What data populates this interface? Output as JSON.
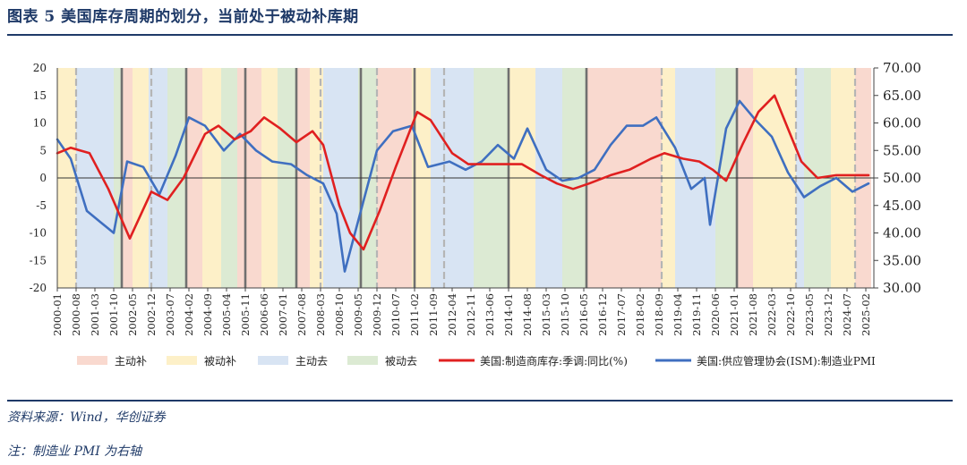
{
  "header": {
    "title": "图表 5   美国库存周期的划分，当前处于被动补库期"
  },
  "footer": {
    "source": "资料来源：Wind，华创证券",
    "note": "注：制造业 PMI 为右轴"
  },
  "chart_data": {
    "type": "line",
    "left_axis": {
      "range": [
        -20,
        20
      ],
      "ticks": [
        "20",
        "15",
        "10",
        "5",
        "0",
        "-5",
        "-10",
        "-15",
        "-20"
      ]
    },
    "right_axis": {
      "range": [
        30,
        70
      ],
      "ticks": [
        "70.00",
        "65.00",
        "60.00",
        "55.00",
        "50.00",
        "45.00",
        "40.00",
        "35.00",
        "30.00"
      ]
    },
    "x_ticks": [
      "2000-01",
      "2000-08",
      "2001-03",
      "2001-10",
      "2002-05",
      "2002-12",
      "2003-07",
      "2004-02",
      "2004-09",
      "2005-04",
      "2005-11",
      "2006-06",
      "2007-01",
      "2007-08",
      "2008-03",
      "2008-10",
      "2009-05",
      "2009-12",
      "2010-07",
      "2011-02",
      "2011-09",
      "2012-04",
      "2012-11",
      "2013-06",
      "2014-01",
      "2014-08",
      "2015-03",
      "2015-10",
      "2016-05",
      "2016-12",
      "2017-07",
      "2018-02",
      "2018-09",
      "2019-04",
      "2019-11",
      "2020-06",
      "2021-01",
      "2021-08",
      "2022-03",
      "2022-10",
      "2023-05",
      "2023-12",
      "2024-07",
      "2025-02"
    ],
    "legend": [
      {
        "label": "主动补",
        "kind": "area",
        "color": "#f9d9cf"
      },
      {
        "label": "被动补",
        "kind": "area",
        "color": "#fdf0c8"
      },
      {
        "label": "主动去",
        "kind": "area",
        "color": "#d8e4f3"
      },
      {
        "label": "被动去",
        "kind": "area",
        "color": "#dcead3"
      },
      {
        "label": "美国:制造商库存:季调:同比(%)",
        "kind": "line",
        "color": "#e02020"
      },
      {
        "label": "美国:供应管理协会(ISM):制造业PMI",
        "kind": "line",
        "color": "#3f6fc0"
      }
    ],
    "phases": [
      {
        "start": "2000-01",
        "end": "2000-08",
        "phase": "被动补"
      },
      {
        "start": "2000-08",
        "end": "2001-10",
        "phase": "主动去"
      },
      {
        "start": "2001-10",
        "end": "2002-01",
        "phase": "被动去"
      },
      {
        "start": "2002-01",
        "end": "2002-05",
        "phase": "主动补"
      },
      {
        "start": "2002-05",
        "end": "2002-11",
        "phase": "被动补"
      },
      {
        "start": "2002-11",
        "end": "2003-06",
        "phase": "主动去"
      },
      {
        "start": "2003-06",
        "end": "2004-01",
        "phase": "被动去"
      },
      {
        "start": "2004-01",
        "end": "2004-07",
        "phase": "主动补"
      },
      {
        "start": "2004-07",
        "end": "2005-02",
        "phase": "被动补"
      },
      {
        "start": "2005-02",
        "end": "2005-08",
        "phase": "被动去"
      },
      {
        "start": "2005-08",
        "end": "2006-05",
        "phase": "主动补"
      },
      {
        "start": "2006-05",
        "end": "2006-11",
        "phase": "被动补"
      },
      {
        "start": "2006-11",
        "end": "2007-06",
        "phase": "被动去"
      },
      {
        "start": "2007-06",
        "end": "2007-11",
        "phase": "主动补"
      },
      {
        "start": "2007-11",
        "end": "2008-04",
        "phase": "被动补"
      },
      {
        "start": "2008-04",
        "end": "2009-05",
        "phase": "主动去"
      },
      {
        "start": "2009-05",
        "end": "2009-12",
        "phase": "被动去"
      },
      {
        "start": "2009-12",
        "end": "2011-01",
        "phase": "主动补"
      },
      {
        "start": "2011-01",
        "end": "2011-08",
        "phase": "被动补"
      },
      {
        "start": "2011-08",
        "end": "2012-12",
        "phase": "主动去"
      },
      {
        "start": "2012-12",
        "end": "2014-01",
        "phase": "被动去"
      },
      {
        "start": "2014-01",
        "end": "2014-11",
        "phase": "被动补"
      },
      {
        "start": "2014-11",
        "end": "2015-09",
        "phase": "主动去"
      },
      {
        "start": "2015-09",
        "end": "2016-06",
        "phase": "被动去"
      },
      {
        "start": "2016-06",
        "end": "2018-10",
        "phase": "主动补"
      },
      {
        "start": "2018-10",
        "end": "2019-03",
        "phase": "被动补"
      },
      {
        "start": "2019-03",
        "end": "2020-06",
        "phase": "主动去"
      },
      {
        "start": "2020-06",
        "end": "2021-02",
        "phase": "被动去"
      },
      {
        "start": "2021-02",
        "end": "2021-08",
        "phase": "主动补"
      },
      {
        "start": "2021-08",
        "end": "2022-12",
        "phase": "被动补"
      },
      {
        "start": "2022-12",
        "end": "2023-03",
        "phase": "主动去"
      },
      {
        "start": "2023-03",
        "end": "2024-01",
        "phase": "被动去"
      },
      {
        "start": "2024-01",
        "end": "2024-10",
        "phase": "被动补"
      },
      {
        "start": "2024-10",
        "end": "2025-04",
        "phase": "主动补"
      }
    ],
    "solid_dividers": [
      "2002-01",
      "2004-01",
      "2005-11",
      "2007-06",
      "2009-06",
      "2011-02",
      "2014-01",
      "2016-06",
      "2021-02"
    ],
    "dashed_dividers": [
      "2000-08",
      "2002-12",
      "2008-03",
      "2009-12",
      "2012-01",
      "2018-10",
      "2022-12",
      "2024-10"
    ],
    "inventory_yoy": {
      "x": [
        "2000-01",
        "2000-06",
        "2001-01",
        "2001-08",
        "2002-04",
        "2002-12",
        "2003-06",
        "2003-12",
        "2004-08",
        "2005-01",
        "2005-07",
        "2006-01",
        "2006-06",
        "2006-12",
        "2007-06",
        "2007-12",
        "2008-04",
        "2008-10",
        "2009-02",
        "2009-07",
        "2010-01",
        "2010-07",
        "2011-03",
        "2011-08",
        "2012-04",
        "2012-10",
        "2013-05",
        "2013-12",
        "2014-06",
        "2015-01",
        "2015-07",
        "2016-01",
        "2016-07",
        "2017-03",
        "2017-10",
        "2018-06",
        "2018-11",
        "2019-06",
        "2019-12",
        "2020-05",
        "2020-10",
        "2021-04",
        "2021-10",
        "2022-04",
        "2022-09",
        "2023-02",
        "2023-08",
        "2024-03",
        "2024-09",
        "2025-03"
      ],
      "y": [
        4.5,
        5.5,
        4.5,
        -2,
        -11,
        -2.5,
        -4,
        0,
        8,
        9.5,
        7,
        8.5,
        11,
        9,
        6.5,
        8.5,
        6,
        -5,
        -10,
        -13,
        -6,
        2,
        12,
        10.5,
        4.5,
        2.5,
        2.5,
        2.5,
        2.5,
        0.5,
        -1,
        -2,
        -1,
        0.5,
        1.5,
        3.5,
        4.5,
        3.5,
        3,
        1.5,
        -0.5,
        6,
        12,
        15,
        9,
        3,
        0,
        0.5,
        0.5,
        0.5
      ]
    },
    "ism_pmi": {
      "x": [
        "2000-01",
        "2000-06",
        "2000-12",
        "2001-05",
        "2001-10",
        "2002-03",
        "2002-09",
        "2003-03",
        "2003-09",
        "2004-02",
        "2004-08",
        "2005-03",
        "2005-09",
        "2006-03",
        "2006-09",
        "2007-04",
        "2007-10",
        "2008-04",
        "2008-09",
        "2008-12",
        "2009-06",
        "2009-12",
        "2010-06",
        "2011-01",
        "2011-07",
        "2012-03",
        "2012-09",
        "2013-03",
        "2013-09",
        "2014-03",
        "2014-08",
        "2015-03",
        "2015-09",
        "2016-03",
        "2016-09",
        "2017-03",
        "2017-09",
        "2018-03",
        "2018-08",
        "2019-03",
        "2019-09",
        "2020-02",
        "2020-04",
        "2020-10",
        "2021-03",
        "2021-09",
        "2022-03",
        "2022-09",
        "2023-03",
        "2023-09",
        "2024-03",
        "2024-09",
        "2025-03"
      ],
      "y": [
        57,
        53.5,
        44,
        42,
        40,
        53,
        52,
        47,
        54,
        61,
        59.5,
        55,
        58,
        55,
        53,
        52.5,
        50.5,
        49,
        43.5,
        33,
        44,
        55,
        58.5,
        59.5,
        52,
        53,
        51.5,
        53,
        56,
        53.5,
        59,
        51.5,
        49.5,
        50,
        51.5,
        56,
        59.5,
        59.5,
        61,
        55.5,
        48,
        50,
        41.5,
        59,
        64,
        60.5,
        57.5,
        51,
        46.5,
        48.5,
        50,
        47.5,
        49
      ]
    }
  }
}
